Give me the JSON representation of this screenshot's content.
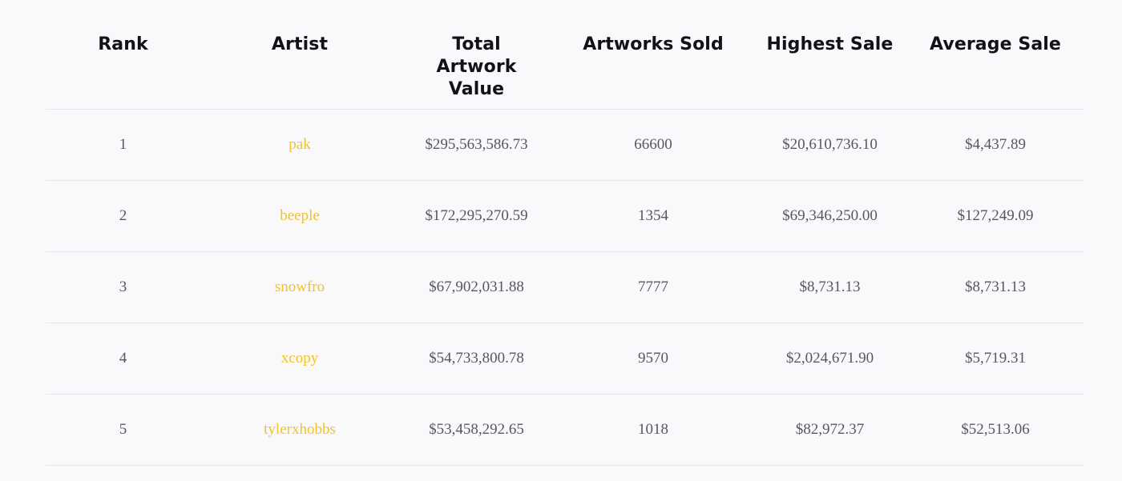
{
  "table": {
    "headers": {
      "rank": "Rank",
      "artist": "Artist",
      "total_value": "Total Artwork Value",
      "sold": "Artworks Sold",
      "highest": "Highest Sale",
      "average": "Average Sale"
    },
    "rows": [
      {
        "rank": "1",
        "artist": "pak",
        "total_value": "$295,563,586.73",
        "sold": "66600",
        "highest": "$20,610,736.10",
        "average": "$4,437.89"
      },
      {
        "rank": "2",
        "artist": "beeple",
        "total_value": "$172,295,270.59",
        "sold": "1354",
        "highest": "$69,346,250.00",
        "average": "$127,249.09"
      },
      {
        "rank": "3",
        "artist": "snowfro",
        "total_value": "$67,902,031.88",
        "sold": "7777",
        "highest": "$8,731.13",
        "average": "$8,731.13"
      },
      {
        "rank": "4",
        "artist": "xcopy",
        "total_value": "$54,733,800.78",
        "sold": "9570",
        "highest": "$2,024,671.90",
        "average": "$5,719.31"
      },
      {
        "rank": "5",
        "artist": "tylerxhobbs",
        "total_value": "$53,458,292.65",
        "sold": "1018",
        "highest": "$82,972.37",
        "average": "$52,513.06"
      }
    ]
  },
  "colors": {
    "background": "#f9f9fb",
    "artist_link": "#f2c321",
    "header_text": "#111215",
    "cell_text": "#55595e",
    "divider": "#e6e7ea"
  }
}
